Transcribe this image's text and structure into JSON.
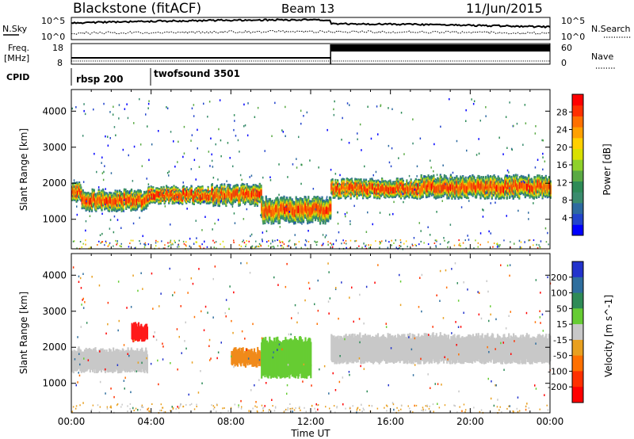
{
  "header": {
    "title": "Blackstone (fitACF)",
    "beam": "Beam 13",
    "date": "11/Jun/2015"
  },
  "top_panels": {
    "nsky_label": "N.Sky",
    "nsearch_label": "N.Search",
    "noise_ticks": [
      "10^5",
      "10^0"
    ],
    "noise_right_ticks": [
      "10^5",
      "10^0"
    ],
    "freq_label_line1": "Freq.",
    "freq_label_line2": "[MHz]",
    "freq_ticks": [
      "18",
      "8"
    ],
    "nave_label": "Nave",
    "nave_ticks": [
      "60",
      "0"
    ],
    "cpid_label": "CPID",
    "cpid_segments": [
      "rbsp 200",
      "twofsound 3501"
    ]
  },
  "chart_data": [
    {
      "type": "heatmap",
      "panel": "power",
      "title": "",
      "xlabel": "Time UT",
      "ylabel": "Slant Range [km]",
      "x_ticks": [
        "00:00",
        "04:00",
        "08:00",
        "12:00",
        "16:00",
        "20:00",
        "00:00"
      ],
      "xlim_hours": [
        0,
        24
      ],
      "y_ticks": [
        1000,
        2000,
        3000,
        4000
      ],
      "ylim": [
        180,
        4600
      ],
      "colorbar_label": "Power [dB]",
      "colorbar_ticks": [
        4,
        8,
        12,
        16,
        20,
        24,
        28
      ],
      "colorbar_colors": [
        "#0000ff",
        "#2244cc",
        "#2d6aa0",
        "#3a8c6e",
        "#2e8b57",
        "#5aaa44",
        "#8fd12a",
        "#d9e000",
        "#ffd000",
        "#ffa000",
        "#ff7000",
        "#ff3000",
        "#ff0000"
      ],
      "grid": false,
      "bands": [
        {
          "t0": 0.0,
          "t1": 0.5,
          "r0": 1600,
          "r1": 1900
        },
        {
          "t0": 0.5,
          "t1": 3.8,
          "r0": 1350,
          "r1": 1700
        },
        {
          "t0": 3.8,
          "t1": 7.0,
          "r0": 1550,
          "r1": 1800
        },
        {
          "t0": 7.0,
          "t1": 9.5,
          "r0": 1500,
          "r1": 1850
        },
        {
          "t0": 9.5,
          "t1": 13.0,
          "r0": 1000,
          "r1": 1500
        },
        {
          "t0": 13.0,
          "t1": 17.5,
          "r0": 1700,
          "r1": 2000
        },
        {
          "t0": 17.5,
          "t1": 24.0,
          "r0": 1700,
          "r1": 2100
        }
      ]
    },
    {
      "type": "heatmap",
      "panel": "velocity",
      "title": "",
      "xlabel": "Time UT",
      "ylabel": "Slant Range [km]",
      "x_ticks": [
        "00:00",
        "04:00",
        "08:00",
        "12:00",
        "16:00",
        "20:00",
        "00:00"
      ],
      "xlim_hours": [
        0,
        24
      ],
      "y_ticks": [
        1000,
        2000,
        3000,
        4000
      ],
      "ylim": [
        180,
        4600
      ],
      "colorbar_label": "Velocity [m s^-1]",
      "colorbar_ticks": [
        200,
        100,
        50,
        15,
        -15,
        -50,
        -100,
        -200
      ],
      "colorbar_colors": [
        "#2233cc",
        "#2e6e9e",
        "#2e8b57",
        "#66cc33",
        "#c8c8c8",
        "#e8a020",
        "#ff7000",
        "#ff3000",
        "#ff0000"
      ],
      "grid": false,
      "patches": [
        {
          "t0": 0.0,
          "t1": 3.8,
          "r0": 1350,
          "r1": 1900,
          "color": "grey"
        },
        {
          "t0": 3.0,
          "t1": 3.8,
          "r0": 2200,
          "r1": 2600,
          "color": "red"
        },
        {
          "t0": 8.0,
          "t1": 9.5,
          "r0": 1500,
          "r1": 1900,
          "color": "orange"
        },
        {
          "t0": 9.5,
          "t1": 12.0,
          "r0": 1200,
          "r1": 2200,
          "color": "green"
        },
        {
          "t0": 13.0,
          "t1": 24.0,
          "r0": 1600,
          "r1": 2300,
          "color": "grey"
        }
      ]
    }
  ]
}
